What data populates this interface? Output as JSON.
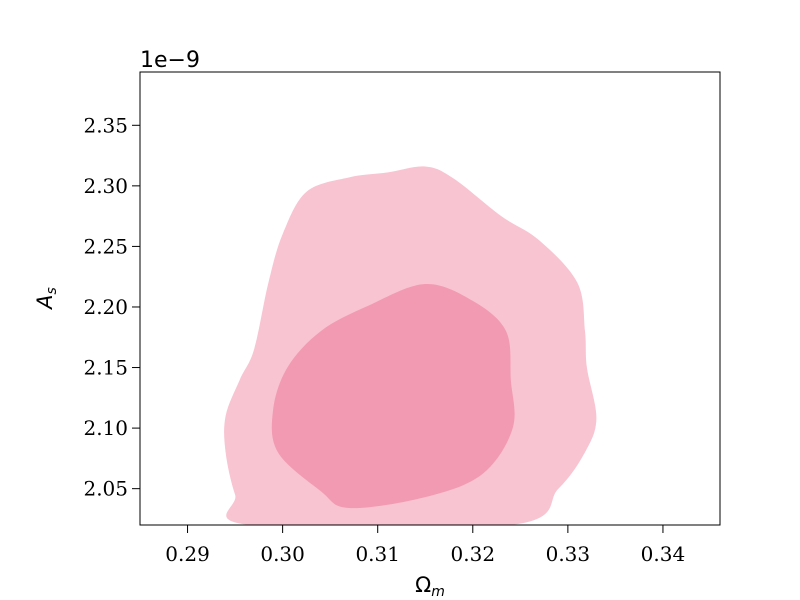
{
  "chart_data": {
    "type": "contour",
    "xlabel": "Ω",
    "xlabel_sub": "m",
    "ylabel": "A",
    "ylabel_sub": "s",
    "y_offset_label": "1e−9",
    "xlim": [
      0.285,
      0.346
    ],
    "ylim": [
      2.02,
      2.394
    ],
    "x_ticks": [
      {
        "value": 0.29,
        "label": "0.29"
      },
      {
        "value": 0.3,
        "label": "0.30"
      },
      {
        "value": 0.31,
        "label": "0.31"
      },
      {
        "value": 0.32,
        "label": "0.32"
      },
      {
        "value": 0.33,
        "label": "0.33"
      },
      {
        "value": 0.34,
        "label": "0.34"
      }
    ],
    "y_ticks": [
      {
        "value": 2.05,
        "label": "2.05"
      },
      {
        "value": 2.1,
        "label": "2.10"
      },
      {
        "value": 2.15,
        "label": "2.15"
      },
      {
        "value": 2.2,
        "label": "2.20"
      },
      {
        "value": 2.25,
        "label": "2.25"
      },
      {
        "value": 2.3,
        "label": "2.30"
      },
      {
        "value": 2.35,
        "label": "2.35"
      }
    ],
    "grid": false,
    "series": [
      {
        "level": "outer",
        "color": "#f8c4d1",
        "points": [
          [
            0.2966,
            2.02
          ],
          [
            0.295,
            2.045
          ],
          [
            0.294,
            2.08
          ],
          [
            0.294,
            2.11
          ],
          [
            0.2955,
            2.14
          ],
          [
            0.297,
            2.165
          ],
          [
            0.2985,
            2.22
          ],
          [
            0.3,
            2.26
          ],
          [
            0.3025,
            2.295
          ],
          [
            0.307,
            2.307
          ],
          [
            0.311,
            2.311
          ],
          [
            0.315,
            2.316
          ],
          [
            0.318,
            2.306
          ],
          [
            0.323,
            2.275
          ],
          [
            0.327,
            2.255
          ],
          [
            0.331,
            2.22
          ],
          [
            0.3318,
            2.18
          ],
          [
            0.332,
            2.15
          ],
          [
            0.333,
            2.108
          ],
          [
            0.3318,
            2.08
          ],
          [
            0.329,
            2.05
          ],
          [
            0.324,
            2.02
          ]
        ]
      },
      {
        "level": "inner",
        "color": "#f29ab1",
        "points": [
          [
            0.304,
            2.048
          ],
          [
            0.307,
            2.034
          ],
          [
            0.315,
            2.043
          ],
          [
            0.321,
            2.062
          ],
          [
            0.3242,
            2.1
          ],
          [
            0.324,
            2.14
          ],
          [
            0.3235,
            2.18
          ],
          [
            0.32,
            2.205
          ],
          [
            0.315,
            2.219
          ],
          [
            0.309,
            2.201
          ],
          [
            0.304,
            2.18
          ],
          [
            0.3005,
            2.15
          ],
          [
            0.299,
            2.115
          ],
          [
            0.2995,
            2.08
          ]
        ]
      }
    ]
  }
}
